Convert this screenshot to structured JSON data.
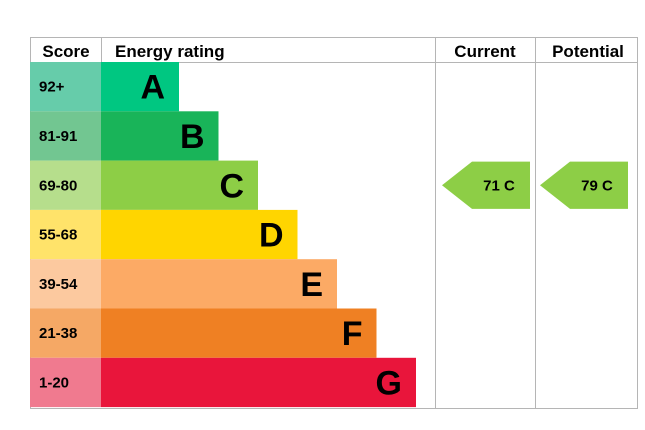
{
  "chart_data": {
    "type": "bar",
    "headers": {
      "score": "Score",
      "rating": "Energy rating",
      "current": "Current",
      "potential": "Potential"
    },
    "bands": [
      {
        "range": "92+",
        "letter": "A",
        "color": "#00c781",
        "light": "#66ccaa"
      },
      {
        "range": "81-91",
        "letter": "B",
        "color": "#19b459",
        "light": "#72c691"
      },
      {
        "range": "69-80",
        "letter": "C",
        "color": "#8dce46",
        "light": "#b6de8c"
      },
      {
        "range": "55-68",
        "letter": "D",
        "color": "#ffd500",
        "light": "#ffe36a"
      },
      {
        "range": "39-54",
        "letter": "E",
        "color": "#fcaa65",
        "light": "#fcc99f"
      },
      {
        "range": "21-38",
        "letter": "F",
        "color": "#ef8023",
        "light": "#f5a865"
      },
      {
        "range": "1-20",
        "letter": "G",
        "color": "#e9153b",
        "light": "#f07a8f"
      }
    ],
    "current": {
      "value": 71,
      "letter": "C",
      "label": "71  C",
      "color": "#8dce46"
    },
    "potential": {
      "value": 79,
      "letter": "C",
      "label": "79  C",
      "color": "#8dce46"
    }
  }
}
